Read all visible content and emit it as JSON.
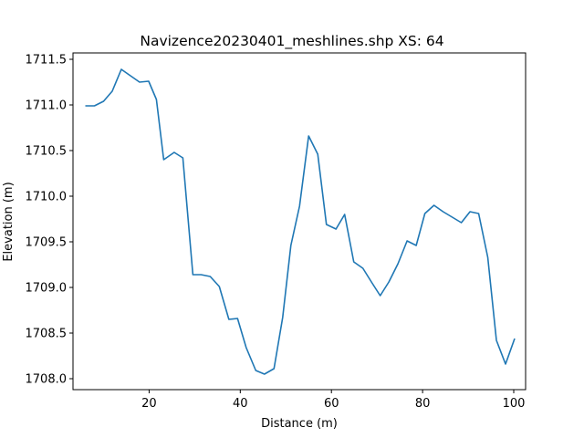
{
  "chart_data": {
    "type": "line",
    "title": "Navizence20230401_meshlines.shp XS: 64",
    "xlabel": "Distance (m)",
    "ylabel": "Elevation (m)",
    "xlim": [
      3.3,
      102.6
    ],
    "ylim": [
      1707.88,
      1711.57
    ],
    "xticks": [
      20,
      40,
      60,
      80,
      100
    ],
    "yticks": [
      1708.0,
      1708.5,
      1709.0,
      1709.5,
      1710.0,
      1710.5,
      1711.0,
      1711.5
    ],
    "ytick_labels": [
      "1708.0",
      "1708.5",
      "1709.0",
      "1709.5",
      "1710.0",
      "1710.5",
      "1711.0",
      "1711.5"
    ],
    "grid": false,
    "color": "#1f77b4",
    "series": [
      {
        "x": [
          6.0,
          8.0,
          10.0,
          11.9,
          13.9,
          15.9,
          17.9,
          19.9,
          21.6,
          23.2,
          25.5,
          27.4,
          29.6,
          31.4,
          33.4,
          35.4,
          37.5,
          39.4,
          41.3,
          43.4,
          45.3,
          47.4,
          49.3,
          51.1,
          53.0,
          55.0,
          57.0,
          58.9,
          61.0,
          62.9,
          64.9,
          66.9,
          68.9,
          70.7,
          72.6,
          74.6,
          76.6,
          78.6,
          80.5,
          82.5,
          84.5,
          86.5,
          88.5,
          90.4,
          92.3,
          94.3,
          96.2,
          98.2,
          100.2
        ],
        "y": [
          1710.99,
          1710.99,
          1711.04,
          1711.15,
          1711.39,
          1711.32,
          1711.25,
          1711.26,
          1711.06,
          1710.4,
          1710.48,
          1710.42,
          1709.14,
          1709.14,
          1709.12,
          1709.01,
          1708.65,
          1708.66,
          1708.34,
          1708.09,
          1708.05,
          1708.11,
          1708.67,
          1709.46,
          1709.89,
          1710.66,
          1710.46,
          1709.69,
          1709.64,
          1709.8,
          1709.28,
          1709.21,
          1709.05,
          1708.91,
          1709.06,
          1709.26,
          1709.51,
          1709.46,
          1709.81,
          1709.9,
          1709.83,
          1709.77,
          1709.71,
          1709.83,
          1709.81,
          1709.33,
          1708.42,
          1708.16,
          1708.44
        ]
      }
    ]
  }
}
